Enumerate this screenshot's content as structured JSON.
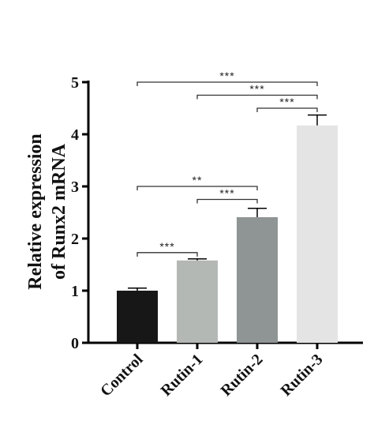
{
  "chart_data": {
    "type": "bar",
    "categories": [
      "Control",
      "Rutin-1",
      "Rutin-2",
      "Rutin-3"
    ],
    "values": [
      1.0,
      1.58,
      2.41,
      4.17
    ],
    "errors": [
      0.05,
      0.03,
      0.17,
      0.2
    ],
    "colors": [
      "#171717",
      "#b3b8b5",
      "#8e9594",
      "#e3e4e3"
    ],
    "title": "",
    "xlabel": "",
    "ylabel": [
      "Relative expression",
      "of Runx2 mRNA"
    ],
    "ylim": [
      0,
      5
    ],
    "yticks": [
      0,
      1,
      2,
      3,
      4,
      5
    ],
    "grid": false,
    "significance": [
      {
        "from": 0,
        "to": 1,
        "label": "***",
        "y": 1.73
      },
      {
        "from": 0,
        "to": 2,
        "label": "**",
        "y": 3.0
      },
      {
        "from": 1,
        "to": 2,
        "label": "***",
        "y": 2.75
      },
      {
        "from": 0,
        "to": 3,
        "label": "***",
        "y": 5.0
      },
      {
        "from": 1,
        "to": 3,
        "label": "***",
        "y": 4.75
      },
      {
        "from": 2,
        "to": 3,
        "label": "***",
        "y": 4.5
      }
    ]
  }
}
